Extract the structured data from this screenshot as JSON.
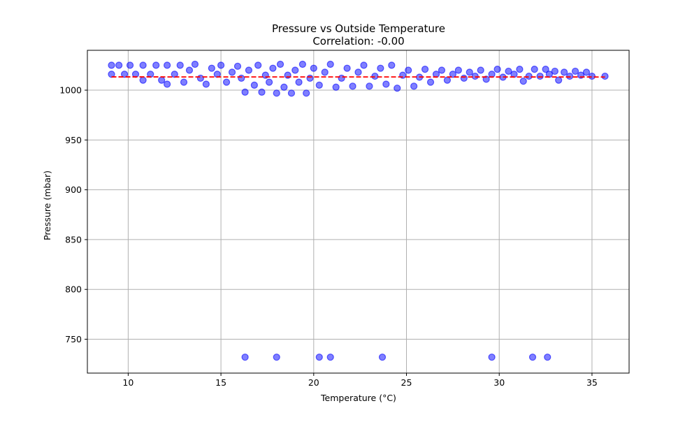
{
  "chart_data": {
    "type": "scatter",
    "title": "Pressure vs Outside Temperature",
    "subtitle": "Correlation: -0.00",
    "xlabel": "Temperature (°C)",
    "ylabel": "Pressure (mbar)",
    "xlim": [
      7.8,
      37.0
    ],
    "ylim": [
      716,
      1040
    ],
    "xticks": [
      10,
      15,
      20,
      25,
      30,
      35
    ],
    "yticks": [
      750,
      800,
      850,
      900,
      950,
      1000
    ],
    "grid": true,
    "colors": {
      "points": "#0000ff",
      "trend_line": "#ff0000"
    },
    "trend_line": {
      "x": [
        9.1,
        35.7
      ],
      "y": [
        1013.3,
        1013.2
      ]
    },
    "series": [
      {
        "points": [
          [
            9.1,
            1025
          ],
          [
            9.1,
            1016
          ],
          [
            9.5,
            1025
          ],
          [
            9.8,
            1016
          ],
          [
            10.1,
            1025
          ],
          [
            10.4,
            1016
          ],
          [
            10.8,
            1025
          ],
          [
            10.8,
            1010
          ],
          [
            11.2,
            1016
          ],
          [
            11.5,
            1025
          ],
          [
            11.8,
            1010
          ],
          [
            12.1,
            1025
          ],
          [
            12.1,
            1006
          ],
          [
            12.5,
            1016
          ],
          [
            12.8,
            1025
          ],
          [
            13.0,
            1008
          ],
          [
            13.3,
            1020
          ],
          [
            13.6,
            1026
          ],
          [
            13.9,
            1012
          ],
          [
            14.2,
            1006
          ],
          [
            14.5,
            1022
          ],
          [
            14.8,
            1016
          ],
          [
            15.0,
            1025
          ],
          [
            15.3,
            1008
          ],
          [
            15.6,
            1018
          ],
          [
            15.9,
            1024
          ],
          [
            16.1,
            1012
          ],
          [
            16.3,
            998
          ],
          [
            16.5,
            1020
          ],
          [
            16.8,
            1005
          ],
          [
            17.0,
            1025
          ],
          [
            17.2,
            998
          ],
          [
            17.4,
            1015
          ],
          [
            17.6,
            1008
          ],
          [
            17.8,
            1022
          ],
          [
            18.0,
            997
          ],
          [
            18.2,
            1026
          ],
          [
            18.4,
            1003
          ],
          [
            18.6,
            1015
          ],
          [
            18.8,
            997
          ],
          [
            19.0,
            1020
          ],
          [
            19.2,
            1008
          ],
          [
            19.4,
            1026
          ],
          [
            19.6,
            997
          ],
          [
            19.8,
            1012
          ],
          [
            20.0,
            1022
          ],
          [
            20.3,
            1005
          ],
          [
            20.6,
            1018
          ],
          [
            20.9,
            1026
          ],
          [
            21.2,
            1003
          ],
          [
            21.5,
            1012
          ],
          [
            21.8,
            1022
          ],
          [
            22.1,
            1004
          ],
          [
            22.4,
            1018
          ],
          [
            22.7,
            1025
          ],
          [
            23.0,
            1004
          ],
          [
            23.3,
            1014
          ],
          [
            23.6,
            1022
          ],
          [
            23.9,
            1006
          ],
          [
            24.2,
            1025
          ],
          [
            24.5,
            1002
          ],
          [
            24.8,
            1015
          ],
          [
            25.1,
            1020
          ],
          [
            25.4,
            1004
          ],
          [
            25.7,
            1013
          ],
          [
            26.0,
            1021
          ],
          [
            26.3,
            1008
          ],
          [
            26.6,
            1016
          ],
          [
            26.9,
            1020
          ],
          [
            27.2,
            1010
          ],
          [
            27.5,
            1016
          ],
          [
            27.8,
            1020
          ],
          [
            28.1,
            1012
          ],
          [
            28.4,
            1018
          ],
          [
            28.7,
            1014
          ],
          [
            29.0,
            1020
          ],
          [
            29.3,
            1011
          ],
          [
            29.6,
            1016
          ],
          [
            29.9,
            1021
          ],
          [
            30.2,
            1013
          ],
          [
            30.5,
            1019
          ],
          [
            30.8,
            1016
          ],
          [
            31.1,
            1021
          ],
          [
            31.3,
            1009
          ],
          [
            31.6,
            1014
          ],
          [
            31.9,
            1021
          ],
          [
            32.2,
            1014
          ],
          [
            32.5,
            1021
          ],
          [
            32.7,
            1016
          ],
          [
            33.0,
            1019
          ],
          [
            33.2,
            1010
          ],
          [
            33.5,
            1018
          ],
          [
            33.8,
            1014
          ],
          [
            34.1,
            1019
          ],
          [
            34.4,
            1015
          ],
          [
            34.7,
            1018
          ],
          [
            35.0,
            1014
          ],
          [
            35.7,
            1014
          ],
          [
            16.3,
            732
          ],
          [
            18.0,
            732
          ],
          [
            20.3,
            732
          ],
          [
            20.9,
            732
          ],
          [
            23.7,
            732
          ],
          [
            29.6,
            732
          ],
          [
            31.8,
            732
          ],
          [
            32.6,
            732
          ]
        ]
      }
    ]
  }
}
